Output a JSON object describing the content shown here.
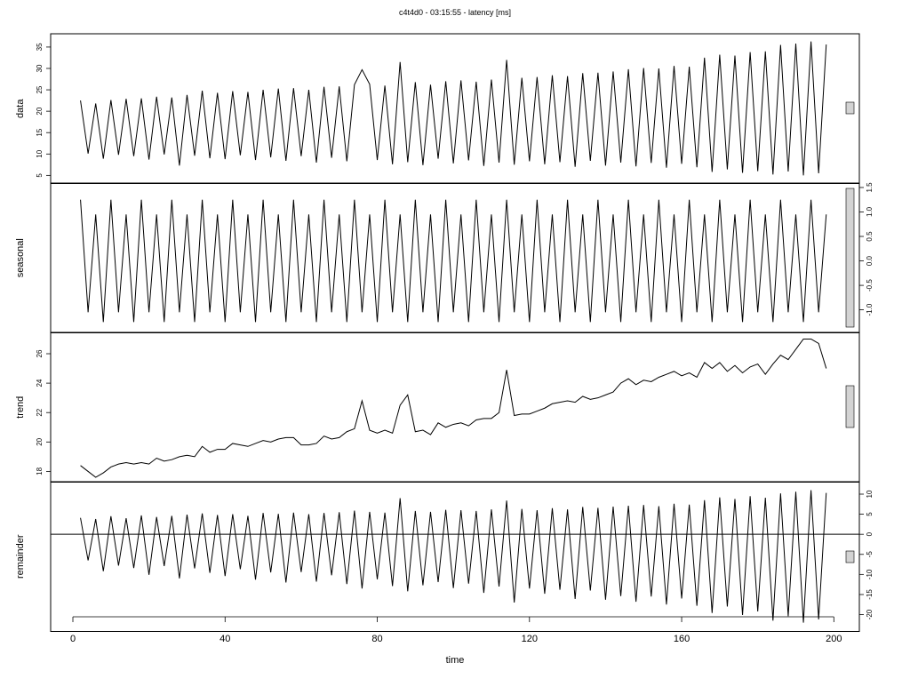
{
  "chart_data": {
    "type": "line",
    "title": "c4t4d0 - 03:15:55 - latency [ms]",
    "xlabel": "time",
    "xlim": [
      -5.84,
      206.7
    ],
    "xticks": [
      0,
      40,
      80,
      120,
      160,
      200
    ],
    "x": [
      2,
      4,
      6,
      8,
      10,
      12,
      14,
      16,
      18,
      20,
      22,
      24,
      26,
      28,
      30,
      32,
      34,
      36,
      38,
      40,
      42,
      44,
      46,
      48,
      50,
      52,
      54,
      56,
      58,
      60,
      62,
      64,
      66,
      68,
      70,
      72,
      74,
      76,
      78,
      80,
      82,
      84,
      86,
      88,
      90,
      92,
      94,
      96,
      98,
      100,
      102,
      104,
      106,
      108,
      110,
      112,
      114,
      116,
      118,
      120,
      122,
      124,
      126,
      128,
      130,
      132,
      134,
      136,
      138,
      140,
      142,
      144,
      146,
      148,
      150,
      152,
      154,
      156,
      158,
      160,
      162,
      164,
      166,
      168,
      170,
      172,
      174,
      176,
      178,
      180,
      182,
      184,
      186,
      188,
      190,
      192,
      194,
      196,
      198
    ],
    "color": "#000000",
    "panels": [
      {
        "name": "data",
        "axis_side": "left",
        "ylim": [
          3.1,
          38.1
        ],
        "yticks": [
          5,
          10,
          15,
          20,
          25,
          30,
          35
        ],
        "values": [
          22.5,
          10.1,
          21.8,
          8.9,
          22.6,
          9.8,
          22.9,
          9.5,
          23.0,
          8.7,
          23.4,
          9.9,
          23.2,
          7.3,
          23.8,
          9.6,
          24.8,
          9.0,
          24.3,
          8.8,
          24.7,
          9.7,
          24.5,
          8.6,
          25.0,
          9.2,
          25.3,
          8.4,
          25.4,
          9.5,
          25.0,
          8.0,
          25.7,
          9.1,
          25.8,
          8.3,
          26.2,
          29.7,
          26.3,
          8.6,
          26.0,
          7.6,
          31.5,
          8.1,
          26.8,
          7.4,
          26.2,
          8.9,
          27.0,
          7.8,
          27.2,
          8.5,
          26.9,
          7.2,
          27.4,
          8.0,
          32.0,
          7.5,
          27.8,
          8.3,
          28.0,
          7.6,
          28.4,
          8.1,
          28.2,
          7.0,
          28.9,
          8.4,
          29.0,
          7.3,
          29.3,
          8.0,
          29.8,
          7.1,
          30.1,
          7.9,
          30.0,
          6.8,
          30.6,
          7.7,
          30.4,
          6.9,
          32.5,
          5.8,
          33.2,
          6.4,
          33.0,
          5.6,
          33.8,
          6.0,
          34.0,
          5.2,
          35.5,
          5.9,
          35.8,
          5.0,
          36.3,
          5.5,
          35.6
        ]
      },
      {
        "name": "seasonal",
        "axis_side": "right",
        "ylim": [
          -1.47,
          1.59
        ],
        "yticks": [
          {
            "value": -1,
            "label": "-1.0"
          },
          -0.5,
          {
            "value": 0,
            "label": "0.0"
          },
          0.5,
          {
            "value": 1,
            "label": "1.0"
          },
          1.5
        ],
        "values": [
          1.25,
          -1.05,
          0.95,
          -1.25,
          1.25,
          -1.05,
          0.95,
          -1.25,
          1.25,
          -1.05,
          0.95,
          -1.25,
          1.25,
          -1.05,
          0.95,
          -1.25,
          1.25,
          -1.05,
          0.95,
          -1.25,
          1.25,
          -1.05,
          0.95,
          -1.25,
          1.25,
          -1.05,
          0.95,
          -1.25,
          1.25,
          -1.05,
          0.95,
          -1.25,
          1.25,
          -1.05,
          0.95,
          -1.25,
          1.25,
          -1.05,
          0.95,
          -1.25,
          1.25,
          -1.05,
          0.95,
          -1.25,
          1.25,
          -1.05,
          0.95,
          -1.25,
          1.25,
          -1.05,
          0.95,
          -1.25,
          1.25,
          -1.05,
          0.95,
          -1.25,
          1.25,
          -1.05,
          0.95,
          -1.25,
          1.25,
          -1.05,
          0.95,
          -1.25,
          1.25,
          -1.05,
          0.95,
          -1.25,
          1.25,
          -1.05,
          0.95,
          -1.25,
          1.25,
          -1.05,
          0.95,
          -1.25,
          1.25,
          -1.05,
          0.95,
          -1.25,
          1.25,
          -1.05,
          0.95,
          -1.25,
          1.25,
          -1.05,
          0.95,
          -1.25,
          1.25,
          -1.05,
          0.95,
          -1.25,
          1.25,
          -1.05,
          0.95,
          -1.25,
          1.25,
          -1.05,
          0.95
        ]
      },
      {
        "name": "trend",
        "axis_side": "left",
        "ylim": [
          17.27,
          27.45
        ],
        "yticks": [
          18,
          20,
          22,
          24,
          26
        ],
        "values": [
          18.4,
          18.0,
          17.6,
          17.9,
          18.3,
          18.5,
          18.6,
          18.5,
          18.6,
          18.5,
          18.9,
          18.7,
          18.8,
          19.0,
          19.1,
          19.0,
          19.7,
          19.3,
          19.5,
          19.5,
          19.9,
          19.8,
          19.7,
          19.9,
          20.1,
          20.0,
          20.2,
          20.3,
          20.3,
          19.8,
          19.8,
          19.9,
          20.4,
          20.2,
          20.3,
          20.7,
          20.9,
          22.8,
          20.8,
          20.6,
          20.8,
          20.6,
          22.5,
          23.2,
          20.7,
          20.8,
          20.5,
          21.3,
          21.0,
          21.2,
          21.3,
          21.1,
          21.5,
          21.6,
          21.6,
          22.0,
          24.9,
          21.8,
          21.9,
          21.9,
          22.1,
          22.3,
          22.6,
          22.7,
          22.8,
          22.7,
          23.1,
          22.9,
          23.0,
          23.2,
          23.4,
          24.0,
          24.3,
          23.9,
          24.2,
          24.1,
          24.4,
          24.6,
          24.8,
          24.5,
          24.7,
          24.4,
          25.4,
          25.0,
          25.4,
          24.8,
          25.2,
          24.7,
          25.1,
          25.3,
          24.6,
          25.3,
          25.9,
          25.6,
          26.3,
          27.0,
          27.0,
          26.7,
          25.0
        ]
      },
      {
        "name": "remainder",
        "axis_side": "right",
        "ylim": [
          -24.2,
          13.1
        ],
        "yticks": [
          -20,
          -15,
          -10,
          -5,
          0,
          5,
          10
        ],
        "hline": 0,
        "values": [
          4.1,
          -6.5,
          3.8,
          -9.2,
          4.5,
          -7.8,
          4.0,
          -8.4,
          4.7,
          -10.1,
          4.3,
          -7.9,
          4.6,
          -11.0,
          4.9,
          -8.5,
          5.2,
          -9.6,
          4.8,
          -10.4,
          5.0,
          -8.7,
          4.6,
          -11.3,
          5.3,
          -9.5,
          5.1,
          -12.0,
          5.4,
          -9.4,
          5.0,
          -11.8,
          5.3,
          -10.2,
          5.5,
          -12.4,
          5.9,
          -13.5,
          5.6,
          -11.2,
          5.4,
          -12.9,
          9.0,
          -14.2,
          5.8,
          -12.7,
          5.6,
          -11.9,
          6.1,
          -13.4,
          6.0,
          -12.3,
          5.8,
          -14.6,
          6.2,
          -13.0,
          8.4,
          -17.0,
          6.3,
          -13.5,
          6.0,
          -14.8,
          6.5,
          -13.8,
          6.2,
          -16.1,
          6.8,
          -14.0,
          6.6,
          -16.3,
          6.9,
          -15.4,
          7.1,
          -16.8,
          7.3,
          -15.5,
          7.0,
          -17.5,
          7.6,
          -16.0,
          7.4,
          -17.8,
          8.5,
          -19.6,
          9.2,
          -18.0,
          8.8,
          -20.1,
          9.5,
          -19.2,
          9.1,
          -21.5,
          10.2,
          -20.4,
          10.6,
          -22.0,
          11.0,
          -21.2,
          10.3
        ]
      }
    ]
  }
}
